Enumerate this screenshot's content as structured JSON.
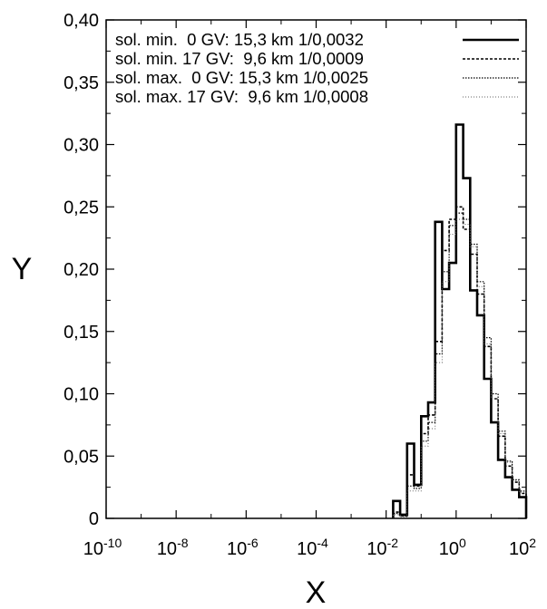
{
  "chart_data": {
    "type": "line",
    "step": true,
    "xlabel": "X",
    "ylabel": "Y",
    "xscale": "log",
    "xlim_log10": [
      -10,
      2
    ],
    "ylim": [
      0,
      0.4
    ],
    "grid": false,
    "legend_position": "top",
    "x_ticks": [
      {
        "base": "10",
        "exp": "-10",
        "log10": -10
      },
      {
        "base": "10",
        "exp": "-8",
        "log10": -8
      },
      {
        "base": "10",
        "exp": "-6",
        "log10": -6
      },
      {
        "base": "10",
        "exp": "-4",
        "log10": -4
      },
      {
        "base": "10",
        "exp": "-2",
        "log10": -2
      },
      {
        "base": "10",
        "exp": "0",
        "log10": 0
      },
      {
        "base": "10",
        "exp": "2",
        "log10": 2
      }
    ],
    "y_ticks": [
      {
        "label": "0",
        "value": 0
      },
      {
        "label": "0,05",
        "value": 0.05
      },
      {
        "label": "0,10",
        "value": 0.1
      },
      {
        "label": "0,15",
        "value": 0.15
      },
      {
        "label": "0,20",
        "value": 0.2
      },
      {
        "label": "0,25",
        "value": 0.25
      },
      {
        "label": "0,30",
        "value": 0.3
      },
      {
        "label": "0,35",
        "value": 0.35
      },
      {
        "label": "0,40",
        "value": 0.4
      }
    ],
    "bin_edges_log10": [
      -1.8,
      -1.6,
      -1.4,
      -1.2,
      -1.0,
      -0.8,
      -0.6,
      -0.4,
      -0.2,
      0.0,
      0.2,
      0.4,
      0.6,
      0.8,
      1.0,
      1.2,
      1.4,
      1.6,
      1.8,
      2.0
    ],
    "series": [
      {
        "name": "sol. min.  0 GV: 15,3 km 1/0,0032",
        "style": "solid",
        "color": "#000000",
        "values": [
          0.014,
          0.003,
          0.06,
          0.027,
          0.082,
          0.093,
          0.238,
          0.184,
          0.205,
          0.316,
          0.273,
          0.183,
          0.163,
          0.112,
          0.077,
          0.047,
          0.033,
          0.023,
          0.017
        ]
      },
      {
        "name": "sol. min. 17 GV:  9,6 km 1/0,0009",
        "style": "dashed",
        "color": "#000000",
        "values": [
          0.005,
          0.002,
          0.035,
          0.026,
          0.068,
          0.083,
          0.142,
          0.215,
          0.24,
          0.25,
          0.232,
          0.212,
          0.18,
          0.138,
          0.096,
          0.066,
          0.042,
          0.029,
          0.02
        ]
      },
      {
        "name": "sol. max.  0 GV: 15,3 km 1/0,0025",
        "style": "dotted",
        "color": "#000000",
        "values": [
          0.004,
          0.002,
          0.026,
          0.024,
          0.062,
          0.077,
          0.132,
          0.198,
          0.235,
          0.245,
          0.24,
          0.22,
          0.19,
          0.145,
          0.1,
          0.07,
          0.046,
          0.031,
          0.022
        ]
      },
      {
        "name": "sol. max. 17 GV:  9,6 km 1/0,0008",
        "style": "finedotted",
        "color": "#666666",
        "values": [
          0.003,
          0.001,
          0.022,
          0.022,
          0.058,
          0.072,
          0.125,
          0.19,
          0.228,
          0.24,
          0.236,
          0.218,
          0.186,
          0.14,
          0.096,
          0.068,
          0.045,
          0.03,
          0.021
        ]
      }
    ]
  }
}
